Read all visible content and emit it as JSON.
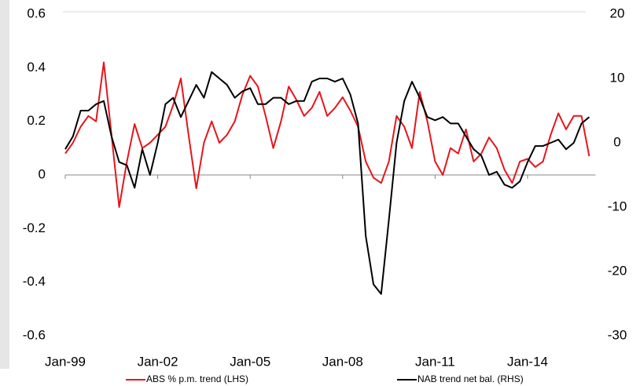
{
  "chart_data": {
    "type": "line",
    "categories": [
      "Jan-99",
      null,
      null,
      null,
      null,
      null,
      null,
      null,
      null,
      null,
      null,
      null,
      "Jan-02",
      null,
      null,
      null,
      null,
      null,
      null,
      null,
      null,
      null,
      null,
      null,
      "Jan-05",
      null,
      null,
      null,
      null,
      null,
      null,
      null,
      null,
      null,
      null,
      null,
      "Jan-08",
      null,
      null,
      null,
      null,
      null,
      null,
      null,
      null,
      null,
      null,
      null,
      "Jan-11",
      null,
      null,
      null,
      null,
      null,
      null,
      null,
      null,
      null,
      null,
      null,
      "Jan-14",
      null,
      null,
      null,
      null,
      null,
      null,
      null,
      null
    ],
    "series": [
      {
        "name": "ABS % p.m. trend (LHS)",
        "color": "#e8141b",
        "axis": "y",
        "values": [
          0.08,
          0.12,
          0.18,
          0.22,
          0.2,
          0.42,
          0.15,
          -0.12,
          0.05,
          0.19,
          0.1,
          0.12,
          0.15,
          0.18,
          0.26,
          0.36,
          0.15,
          -0.05,
          0.12,
          0.2,
          0.12,
          0.15,
          0.2,
          0.3,
          0.37,
          0.33,
          0.22,
          0.1,
          0.2,
          0.33,
          0.28,
          0.22,
          0.25,
          0.31,
          0.22,
          0.25,
          0.29,
          0.24,
          0.18,
          0.05,
          -0.01,
          -0.03,
          0.05,
          0.22,
          0.18,
          0.1,
          0.31,
          0.2,
          0.05,
          0.0,
          0.1,
          0.08,
          0.17,
          0.05,
          0.08,
          0.14,
          0.1,
          0.02,
          -0.03,
          0.05,
          0.06,
          0.03,
          0.05,
          0.15,
          0.23,
          0.17,
          0.22,
          0.22,
          0.07
        ]
      },
      {
        "name": "NAB trend net bal. (RHS)",
        "color": "#000000",
        "axis": "y2",
        "values": [
          -1,
          1,
          5,
          5,
          6,
          6.5,
          1,
          -3,
          -3.5,
          -7,
          -1,
          -5,
          0,
          6,
          7,
          4,
          6.5,
          9,
          7,
          11,
          10,
          9,
          7,
          8,
          8.5,
          6,
          6,
          7,
          7,
          6,
          6.5,
          6.5,
          9.5,
          10,
          10,
          9.5,
          10,
          7.5,
          3,
          -14.5,
          -22,
          -23.5,
          -12,
          0,
          6.5,
          9.5,
          7,
          4,
          3.5,
          4,
          3,
          3,
          1,
          -1,
          -2,
          -5,
          -4.5,
          -6.5,
          -7,
          -6,
          -3,
          -0.5,
          -0.5,
          0,
          0.5,
          -1,
          0,
          3,
          4
        ]
      }
    ],
    "ylim": [
      -0.6,
      0.6
    ],
    "yticks": [
      -0.6,
      -0.4,
      -0.2,
      0,
      0.2,
      0.4,
      0.6
    ],
    "y2lim": [
      -30,
      20
    ],
    "y2ticks": [
      -30,
      -20,
      -10,
      0,
      10,
      20
    ],
    "legend": "bottom"
  }
}
